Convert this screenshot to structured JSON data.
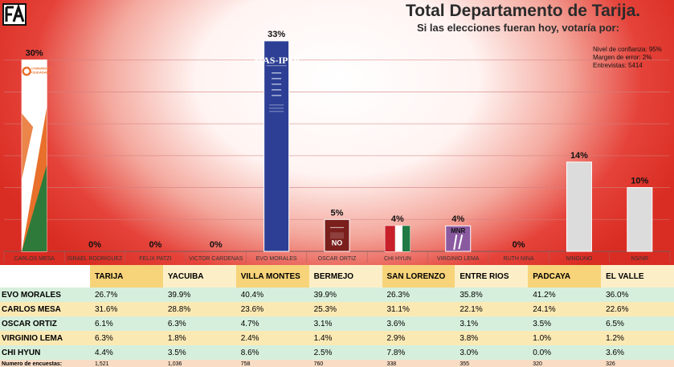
{
  "header": {
    "title": "Total Departamento de Tarija.",
    "subtitle": "Si las elecciones fueran hoy, votaría por:",
    "stats": [
      "Nivel de confianza: 95%",
      "Margen de error: 2%",
      "Entrevistas: 5414"
    ]
  },
  "chart_data": {
    "type": "bar",
    "categories": [
      "CARLOS MESA",
      "ISRAEL RODRIGUEZ",
      "FELIX PATZI",
      "VICTOR CARDENAS",
      "EVO MORALES",
      "OSCAR ORTIZ",
      "CHI HYUN",
      "VIRGINIO LEMA",
      "RUTH NINA",
      "NINGUNO",
      "NS/NR"
    ],
    "values": [
      30,
      0,
      0,
      0,
      33,
      5,
      4,
      4,
      0,
      14,
      10
    ],
    "data_labels": [
      "30%",
      "0%",
      "0%",
      "0%",
      "33%",
      "5%",
      "4%",
      "4%",
      "0%",
      "14%",
      "10%"
    ],
    "ylim": [
      0,
      35
    ],
    "grid": true,
    "bar_colors": [
      "#e8702a",
      "#cccccc",
      "#cccccc",
      "#cccccc",
      "#2d3f94",
      "#7a1f1c",
      "#2f7a4a",
      "#8a5aa0",
      "#cccccc",
      "#dcdcdc",
      "#dcdcdc"
    ],
    "bar_logos": {
      "CARLOS MESA": "COMUNIDAD CIUDADANA",
      "EVO MORALES": "MAS-IPSP",
      "OSCAR ORTIZ": "NO",
      "VIRGINIO LEMA": "MNR"
    }
  },
  "table": {
    "columns": [
      "TARIJA",
      "YACUIBA",
      "VILLA MONTES",
      "BERMEJO",
      "SAN LORENZO",
      "ENTRE RIOS",
      "PADCAYA",
      "EL VALLE"
    ],
    "rows": [
      {
        "name": "EVO MORALES",
        "values": [
          "26.7%",
          "39.9%",
          "40.4%",
          "39.9%",
          "26.3%",
          "35.8%",
          "41.2%",
          "36.0%"
        ]
      },
      {
        "name": "CARLOS MESA",
        "values": [
          "31.6%",
          "28.8%",
          "23.6%",
          "25.3%",
          "31.1%",
          "22.1%",
          "24.1%",
          "22.6%"
        ]
      },
      {
        "name": "OSCAR ORTIZ",
        "values": [
          "6.1%",
          "6.3%",
          "4.7%",
          "3.1%",
          "3.6%",
          "3.1%",
          "3.5%",
          "6.5%"
        ]
      },
      {
        "name": "VIRGINIO LEMA",
        "values": [
          "6.3%",
          "1.8%",
          "2.4%",
          "1.4%",
          "2.9%",
          "3.8%",
          "1.0%",
          "1.2%"
        ]
      },
      {
        "name": "CHI HYUN",
        "values": [
          "4.4%",
          "3.5%",
          "8.6%",
          "2.5%",
          "7.8%",
          "3.0%",
          "0.0%",
          "3.6%"
        ]
      }
    ],
    "count_row": {
      "name": "Numero de encuestas:",
      "values": [
        "1,521",
        "1,036",
        "758",
        "760",
        "338",
        "355",
        "320",
        "326"
      ]
    }
  }
}
